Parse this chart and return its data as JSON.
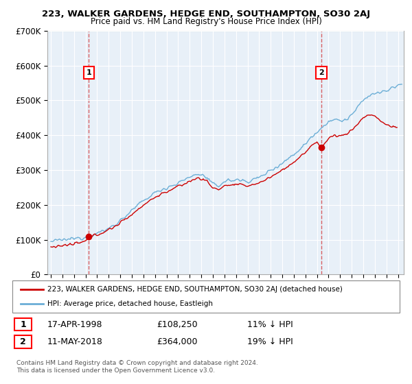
{
  "title": "223, WALKER GARDENS, HEDGE END, SOUTHAMPTON, SO30 2AJ",
  "subtitle": "Price paid vs. HM Land Registry's House Price Index (HPI)",
  "ylabel_ticks": [
    "£0",
    "£100K",
    "£200K",
    "£300K",
    "£400K",
    "£500K",
    "£600K",
    "£700K"
  ],
  "ylim": [
    0,
    700000
  ],
  "xlim_start": 1994.7,
  "xlim_end": 2025.5,
  "sale1": {
    "year": 1998.29,
    "price": 108250,
    "label": "1"
  },
  "sale2": {
    "year": 2018.37,
    "price": 364000,
    "label": "2"
  },
  "legend_line1": "223, WALKER GARDENS, HEDGE END, SOUTHAMPTON, SO30 2AJ (detached house)",
  "legend_line2": "HPI: Average price, detached house, Eastleigh",
  "table_row1": [
    "1",
    "17-APR-1998",
    "£108,250",
    "11% ↓ HPI"
  ],
  "table_row2": [
    "2",
    "11-MAY-2018",
    "£364,000",
    "19% ↓ HPI"
  ],
  "footer": "Contains HM Land Registry data © Crown copyright and database right 2024.\nThis data is licensed under the Open Government Licence v3.0.",
  "hpi_color": "#6baed6",
  "hpi_fill_color": "#d0e8f8",
  "price_color": "#cc0000",
  "dashed_color": "#cc0000",
  "background_color": "#ffffff",
  "plot_bg_color": "#e8f0f8",
  "grid_color": "#ffffff"
}
